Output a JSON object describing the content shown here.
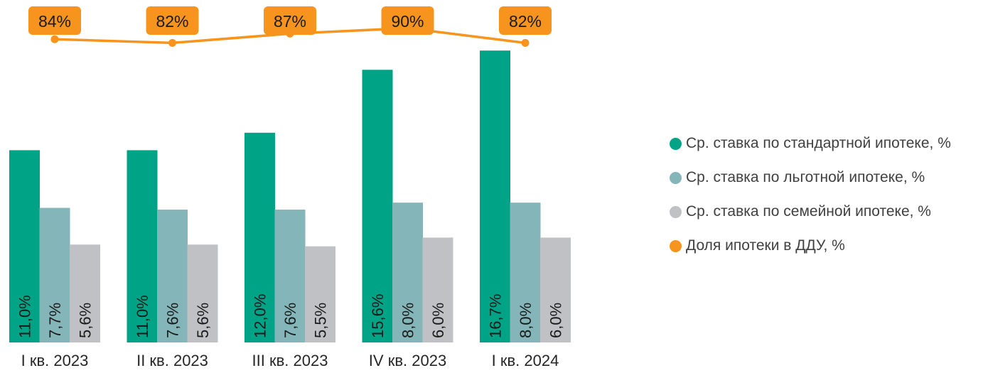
{
  "chart_data": {
    "type": "bar",
    "categories": [
      "I кв. 2023",
      "II кв. 2023",
      "III кв. 2023",
      "IV кв. 2023",
      "I кв. 2024"
    ],
    "series": [
      {
        "name": "Ср. ставка по стандартной ипотеке, %",
        "type": "bar",
        "color": "#00A385",
        "values": [
          11.0,
          11.0,
          12.0,
          15.6,
          16.7
        ],
        "labels": [
          "11,0%",
          "11,0%",
          "12,0%",
          "15,6%",
          "16,7%"
        ]
      },
      {
        "name": "Ср. ставка по льготной ипотеке, %",
        "type": "bar",
        "color": "#84B5B8",
        "values": [
          7.7,
          7.6,
          7.6,
          8.0,
          8.0
        ],
        "labels": [
          "7,7%",
          "7,6%",
          "7,6%",
          "8,0%",
          "8,0%"
        ]
      },
      {
        "name": "Ср. ставка по семейной ипотеке, %",
        "type": "bar",
        "color": "#BFC1C4",
        "values": [
          5.6,
          5.6,
          5.5,
          6.0,
          6.0
        ],
        "labels": [
          "5,6%",
          "5,6%",
          "5,5%",
          "6,0%",
          "6,0%"
        ]
      },
      {
        "name": "Доля ипотеки в ДДУ, %",
        "type": "line",
        "color": "#F7941D",
        "values": [
          84,
          82,
          87,
          90,
          82
        ],
        "labels": [
          "84%",
          "82%",
          "87%",
          "90%",
          "82%"
        ]
      }
    ],
    "legend_position": "right",
    "grid": false
  }
}
